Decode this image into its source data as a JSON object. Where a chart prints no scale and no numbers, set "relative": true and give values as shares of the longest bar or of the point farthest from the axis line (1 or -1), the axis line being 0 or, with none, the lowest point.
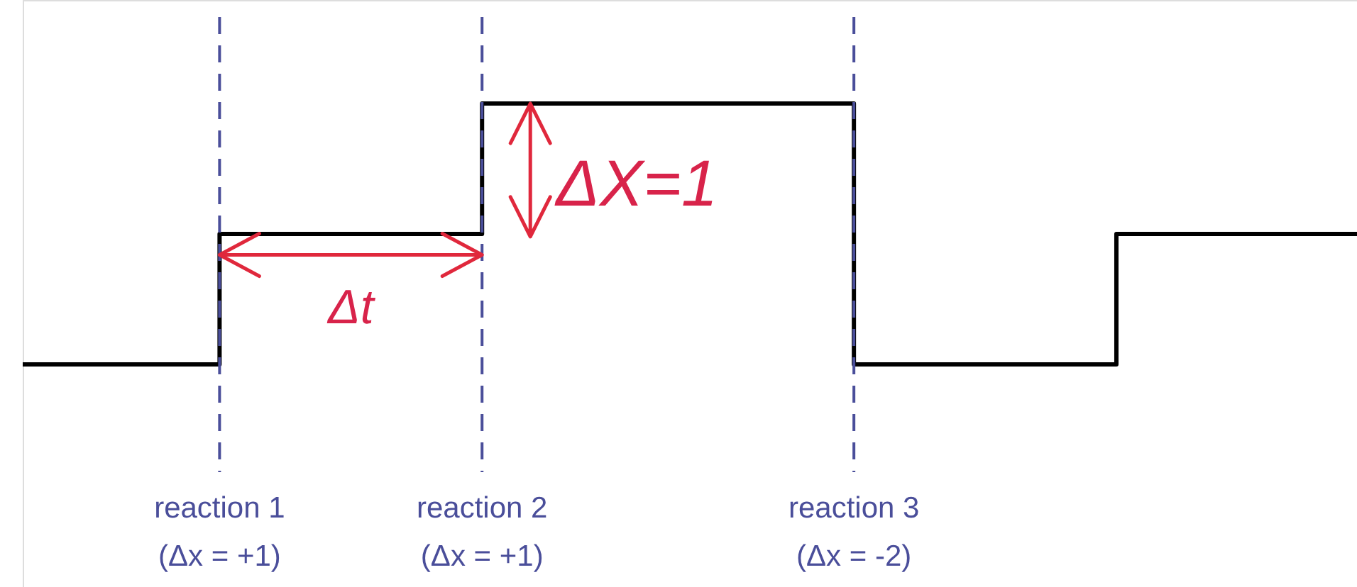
{
  "chart_data": {
    "type": "step",
    "relative": true,
    "tick_labels": "x",
    "legend": false,
    "marker": "none",
    "categories": [
      null,
      null,
      null,
      null,
      null,
      null,
      null,
      null,
      null,
      "reaction 1\n(Δx = +1)",
      null,
      null,
      null,
      null,
      null,
      null,
      null,
      null,
      null,
      null,
      null,
      "reaction 2\n(Δx = +1)",
      null,
      null,
      null,
      null,
      null,
      null,
      null,
      null,
      null,
      null,
      null,
      null,
      null,
      null,
      null,
      null,
      "reaction 3\n(Δx = -2)",
      null,
      null,
      null,
      null,
      null,
      null,
      null,
      null,
      null,
      null,
      null,
      null,
      null,
      null,
      null,
      null,
      null,
      null,
      null,
      null,
      null,
      null,
      null
    ],
    "series": [
      {
        "color": "#000000",
        "values": [
          0,
          0,
          0,
          0,
          0,
          0,
          0,
          0,
          0,
          0.5,
          0.5,
          0.5,
          0.5,
          0.5,
          0.5,
          0.5,
          0.5,
          0.5,
          0.5,
          0.5,
          0.5,
          1,
          1,
          1,
          1,
          1,
          1,
          1,
          1,
          1,
          1,
          1,
          1,
          1,
          1,
          1,
          1,
          1,
          0,
          0,
          0,
          0,
          0,
          0,
          0,
          0,
          0,
          0,
          0,
          0,
          0.5,
          0.5,
          0.5,
          0.5,
          0.5,
          0.5,
          0.5,
          0.5,
          0.5,
          0.5,
          0.5,
          0.5
        ]
      }
    ],
    "ref_lines": [
      {
        "axis": "x",
        "value": "reaction 1\n(Δx = +1)",
        "color": "#4a4e9a",
        "line_style": "dashed"
      },
      {
        "axis": "x",
        "value": "reaction 2\n(Δx = +1)",
        "color": "#4a4e9a",
        "line_style": "dashed"
      },
      {
        "axis": "x",
        "value": "reaction 3\n(Δx = -2)",
        "color": "#4a4e9a",
        "line_style": "dashed"
      }
    ],
    "annotations": [
      "Δt",
      "ΔX=1"
    ]
  }
}
